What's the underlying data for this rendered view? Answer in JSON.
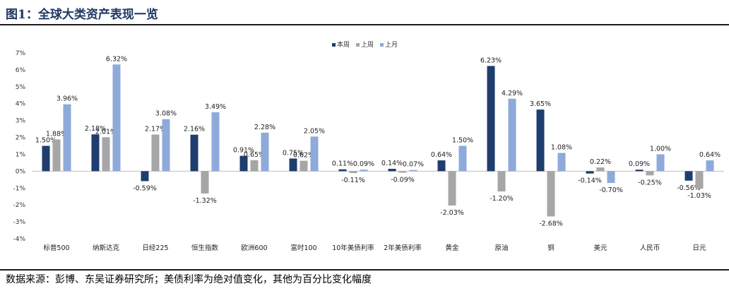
{
  "figure_title": "图1：全球大类资产表现一览",
  "source_note": "数据来源：彭博、东吴证券研究所；美债利率为绝对值变化，其他为百分比变化幅度",
  "colors": {
    "本周": "#1f3d6e",
    "上周": "#a6a6a6",
    "上月": "#8eaadb"
  },
  "chart_data": {
    "type": "bar",
    "categories": [
      "标普500",
      "纳斯达克",
      "日经225",
      "恒生指数",
      "欧洲600",
      "富时100",
      "10年美债利率",
      "2年美债利率",
      "黄金",
      "原油",
      "铜",
      "美元",
      "人民币",
      "日元"
    ],
    "series": [
      {
        "name": "本周",
        "values": [
          1.5,
          2.18,
          -0.59,
          2.16,
          0.91,
          0.75,
          0.11,
          0.14,
          0.64,
          6.23,
          3.65,
          -0.14,
          0.09,
          -0.56
        ],
        "labels": [
          "1.50%",
          "2.18%",
          "-0.59%",
          "2.16%",
          "0.91%",
          "0.75%",
          "0.11%",
          "0.14%",
          "0.64%",
          "6.23%",
          "3.65%",
          "-0.14%",
          "0.09%",
          "-0.56%"
        ]
      },
      {
        "name": "上周",
        "values": [
          1.88,
          2.01,
          2.17,
          -1.32,
          0.65,
          0.62,
          -0.11,
          -0.09,
          -2.03,
          -1.2,
          -2.68,
          0.22,
          -0.25,
          -1.03
        ],
        "labels": [
          "1.88%",
          "2.01%",
          "2.17%",
          "-1.32%",
          "0.65%",
          "0.62%",
          "-0.11%",
          "-0.09%",
          "-2.03%",
          "-1.20%",
          "-2.68%",
          "0.22%",
          "-0.25%",
          "-1.03%"
        ]
      },
      {
        "name": "上月",
        "values": [
          3.96,
          6.32,
          3.08,
          3.49,
          2.28,
          2.05,
          0.09,
          0.07,
          1.5,
          4.29,
          1.08,
          -0.7,
          1.0,
          0.64
        ],
        "labels": [
          "3.96%",
          "6.32%",
          "3.08%",
          "3.49%",
          "2.28%",
          "2.05%",
          "0.09%",
          "0.07%",
          "1.50%",
          "4.29%",
          "1.08%",
          "-0.70%",
          "1.00%",
          "0.64%"
        ]
      }
    ],
    "ylim": [
      -4,
      7
    ],
    "yticks": [
      7,
      6,
      5,
      4,
      3,
      2,
      1,
      0,
      -1,
      -2,
      -3,
      -4
    ],
    "ytick_labels": [
      "7%",
      "6%",
      "5%",
      "4%",
      "3%",
      "2%",
      "1%",
      "0%",
      "-1%",
      "-2%",
      "-3%",
      "-4%"
    ],
    "legend_position": "top",
    "grid": false
  }
}
